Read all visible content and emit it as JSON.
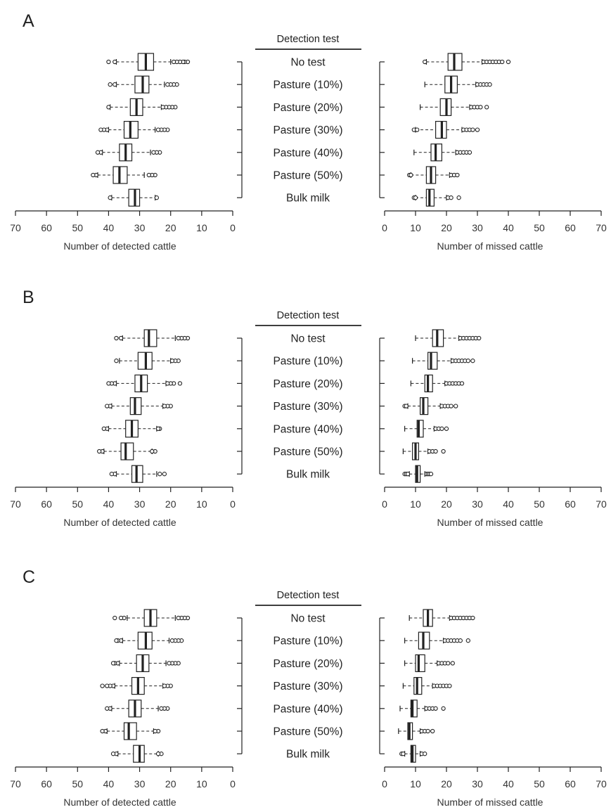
{
  "figure": {
    "header_label": "Detection test",
    "categories": [
      "No test",
      "Pasture (10%)",
      "Pasture (20%)",
      "Pasture (30%)",
      "Pasture (40%)",
      "Pasture (50%)",
      "Bulk milk"
    ],
    "left_axis": {
      "title": "Number of detected cattle",
      "ticks": [
        "70",
        "60",
        "50",
        "40",
        "30",
        "20",
        "10",
        "0"
      ],
      "range": [
        70,
        0
      ]
    },
    "right_axis": {
      "title": "Number of missed cattle",
      "ticks": [
        "0",
        "10",
        "20",
        "30",
        "40",
        "50",
        "60",
        "70"
      ],
      "range": [
        0,
        70
      ]
    }
  },
  "colors": {
    "ink": "#222222",
    "box_fill": "#ffffff"
  },
  "chart_data": [
    {
      "panel": "A",
      "type": "boxplot",
      "detected": [
        {
          "category": "No test",
          "whisker_low": 20,
          "q1": 25.5,
          "median": 28,
          "q3": 30.5,
          "whisker_high": 37.5,
          "outliers": [
            14.5,
            15.5,
            16,
            17,
            18,
            19,
            38,
            40
          ]
        },
        {
          "category": "Pasture (10%)",
          "whisker_low": 22,
          "q1": 27,
          "median": 29,
          "q3": 31.5,
          "whisker_high": 37.5,
          "outliers": [
            18,
            19,
            20,
            21,
            38,
            39.5
          ]
        },
        {
          "category": "Pasture (20%)",
          "whisker_low": 23,
          "q1": 29,
          "median": 31,
          "q3": 33,
          "whisker_high": 39.5,
          "outliers": [
            18.5,
            19.5,
            20.5,
            21.5,
            22.5,
            40
          ]
        },
        {
          "category": "Pasture (30%)",
          "whisker_low": 25,
          "q1": 30.5,
          "median": 33,
          "q3": 35,
          "whisker_high": 40,
          "outliers": [
            21,
            22,
            23,
            24,
            40.5,
            41.5,
            42.5
          ]
        },
        {
          "category": "Pasture (40%)",
          "whisker_low": 26.5,
          "q1": 32.5,
          "median": 34.5,
          "q3": 36.5,
          "whisker_high": 42,
          "outliers": [
            23.5,
            24.5,
            25.5,
            42.5,
            43.5
          ]
        },
        {
          "category": "Pasture (50%)",
          "whisker_low": 28.5,
          "q1": 34,
          "median": 36.5,
          "q3": 38.5,
          "whisker_high": 43.5,
          "outliers": [
            25,
            26,
            27,
            44,
            45
          ]
        },
        {
          "category": "Bulk milk",
          "whisker_low": 25,
          "q1": 30,
          "median": 31.5,
          "q3": 33.5,
          "whisker_high": 39,
          "outliers": [
            24.5,
            39.5
          ]
        }
      ],
      "missed": [
        {
          "category": "No test",
          "whisker_low": 13.5,
          "q1": 20.5,
          "median": 22.5,
          "q3": 25,
          "whisker_high": 31.5,
          "outliers": [
            13,
            32,
            33,
            34,
            35,
            36,
            37,
            38,
            40
          ]
        },
        {
          "category": "Pasture (10%)",
          "whisker_low": 13,
          "q1": 19.5,
          "median": 21.5,
          "q3": 23.5,
          "whisker_high": 29.5,
          "outliers": [
            30,
            31,
            32,
            33,
            34
          ]
        },
        {
          "category": "Pasture (20%)",
          "whisker_low": 11.5,
          "q1": 18,
          "median": 20,
          "q3": 21.5,
          "whisker_high": 27.5,
          "outliers": [
            28,
            29,
            30,
            31,
            33
          ]
        },
        {
          "category": "Pasture (30%)",
          "whisker_low": 10,
          "q1": 16.5,
          "median": 18.5,
          "q3": 20,
          "whisker_high": 25,
          "outliers": [
            9.5,
            10.5,
            25.5,
            26.5,
            27.5,
            28.5,
            30
          ]
        },
        {
          "category": "Pasture (40%)",
          "whisker_low": 9.5,
          "q1": 15,
          "median": 16.5,
          "q3": 18.5,
          "whisker_high": 23,
          "outliers": [
            23.5,
            24.5,
            25.5,
            26.5,
            27.5
          ]
        },
        {
          "category": "Pasture (50%)",
          "whisker_low": 8.5,
          "q1": 13.5,
          "median": 15,
          "q3": 16.5,
          "whisker_high": 21,
          "outliers": [
            8,
            8.5,
            21.5,
            22.5,
            23.5
          ]
        },
        {
          "category": "Bulk milk",
          "whisker_low": 10,
          "q1": 13.5,
          "median": 14.5,
          "q3": 16,
          "whisker_high": 20,
          "outliers": [
            9.5,
            10,
            20.5,
            21.5,
            24
          ]
        }
      ]
    },
    {
      "panel": "B",
      "type": "boxplot",
      "detected": [
        {
          "category": "No test",
          "whisker_low": 18.5,
          "q1": 24.5,
          "median": 27,
          "q3": 28.5,
          "whisker_high": 35.5,
          "outliers": [
            14.5,
            15.5,
            16.5,
            17.5,
            36,
            37.5
          ]
        },
        {
          "category": "Pasture (10%)",
          "whisker_low": 20,
          "q1": 26,
          "median": 28,
          "q3": 30.5,
          "whisker_high": 36.5,
          "outliers": [
            17.5,
            18.5,
            19.5,
            37.5
          ]
        },
        {
          "category": "Pasture (20%)",
          "whisker_low": 21.5,
          "q1": 27.5,
          "median": 29.5,
          "q3": 31.5,
          "whisker_high": 37.5,
          "outliers": [
            17,
            19,
            20,
            21,
            38,
            39,
            40
          ]
        },
        {
          "category": "Pasture (30%)",
          "whisker_low": 22.5,
          "q1": 29.5,
          "median": 31.5,
          "q3": 33,
          "whisker_high": 39,
          "outliers": [
            20,
            21,
            22,
            39.5,
            40.5
          ]
        },
        {
          "category": "Pasture (40%)",
          "whisker_low": 24.5,
          "q1": 30.5,
          "median": 32.5,
          "q3": 34.5,
          "whisker_high": 40,
          "outliers": [
            23.5,
            24,
            40.5,
            41.5
          ]
        },
        {
          "category": "Pasture (50%)",
          "whisker_low": 26,
          "q1": 32,
          "median": 34.5,
          "q3": 36,
          "whisker_high": 41.5,
          "outliers": [
            25,
            26,
            42,
            43
          ]
        },
        {
          "category": "Bulk milk",
          "whisker_low": 24.5,
          "q1": 29,
          "median": 31,
          "q3": 32.5,
          "whisker_high": 37.5,
          "outliers": [
            22,
            23.5,
            38,
            39
          ]
        }
      ],
      "missed": [
        {
          "category": "No test",
          "whisker_low": 10,
          "q1": 15.5,
          "median": 17,
          "q3": 19,
          "whisker_high": 24,
          "outliers": [
            24.5,
            25.5,
            26.5,
            27.5,
            28.5,
            29.5,
            30.5
          ]
        },
        {
          "category": "Pasture (10%)",
          "whisker_low": 9,
          "q1": 14,
          "median": 15,
          "q3": 17,
          "whisker_high": 21.5,
          "outliers": [
            22,
            23,
            24,
            25,
            26,
            27,
            28.5
          ]
        },
        {
          "category": "Pasture (20%)",
          "whisker_low": 8.5,
          "q1": 13,
          "median": 14,
          "q3": 15.5,
          "whisker_high": 19.5,
          "outliers": [
            20,
            21,
            22,
            23,
            24,
            25
          ]
        },
        {
          "category": "Pasture (30%)",
          "whisker_low": 7.5,
          "q1": 11.5,
          "median": 12.5,
          "q3": 14,
          "whisker_high": 18,
          "outliers": [
            6.5,
            7,
            18.5,
            19.5,
            20.5,
            21.5,
            23
          ]
        },
        {
          "category": "Pasture (40%)",
          "whisker_low": 6.5,
          "q1": 10.5,
          "median": 11,
          "q3": 12.5,
          "whisker_high": 16,
          "outliers": [
            16.5,
            17.5,
            18.5,
            20
          ]
        },
        {
          "category": "Pasture (50%)",
          "whisker_low": 6,
          "q1": 9,
          "median": 10,
          "q3": 11,
          "whisker_high": 14,
          "outliers": [
            14.5,
            15.5,
            16.5,
            19
          ]
        },
        {
          "category": "Bulk milk",
          "whisker_low": 8,
          "q1": 10,
          "median": 10.5,
          "q3": 11.5,
          "whisker_high": 13,
          "outliers": [
            6.5,
            7,
            7.5,
            13.5,
            14,
            14.5,
            15
          ]
        }
      ]
    },
    {
      "panel": "C",
      "type": "boxplot",
      "detected": [
        {
          "category": "No test",
          "whisker_low": 18.5,
          "q1": 24.5,
          "median": 26.5,
          "q3": 28.5,
          "whisker_high": 34,
          "outliers": [
            14.5,
            15.5,
            16.5,
            17.5,
            35,
            36,
            38
          ]
        },
        {
          "category": "Pasture (10%)",
          "whisker_low": 20.5,
          "q1": 26,
          "median": 28,
          "q3": 30.5,
          "whisker_high": 35.5,
          "outliers": [
            16.5,
            17.5,
            18.5,
            19.5,
            36,
            37,
            37.5
          ]
        },
        {
          "category": "Pasture (20%)",
          "whisker_low": 21.5,
          "q1": 27,
          "median": 29,
          "q3": 31,
          "whisker_high": 36.5,
          "outliers": [
            17.5,
            18.5,
            19.5,
            20.5,
            37,
            38,
            38.5
          ]
        },
        {
          "category": "Pasture (30%)",
          "whisker_low": 22.5,
          "q1": 28.5,
          "median": 30.5,
          "q3": 32.5,
          "whisker_high": 38,
          "outliers": [
            20,
            21,
            22,
            38.5,
            39.5,
            40.5,
            42
          ]
        },
        {
          "category": "Pasture (40%)",
          "whisker_low": 24,
          "q1": 29.5,
          "median": 31.5,
          "q3": 33.5,
          "whisker_high": 39,
          "outliers": [
            21,
            22,
            23,
            39.5,
            40.5
          ]
        },
        {
          "category": "Pasture (50%)",
          "whisker_low": 25.5,
          "q1": 31,
          "median": 33.5,
          "q3": 35,
          "whisker_high": 40.5,
          "outliers": [
            24,
            25,
            41,
            42
          ]
        },
        {
          "category": "Bulk milk",
          "whisker_low": 24,
          "q1": 28.5,
          "median": 30,
          "q3": 32,
          "whisker_high": 37,
          "outliers": [
            23,
            24,
            37.5,
            38.5
          ]
        }
      ],
      "missed": [
        {
          "category": "No test",
          "whisker_low": 8,
          "q1": 12.5,
          "median": 14,
          "q3": 15.5,
          "whisker_high": 21,
          "outliers": [
            21.5,
            22.5,
            23.5,
            24.5,
            25.5,
            26.5,
            27.5,
            28.5
          ]
        },
        {
          "category": "Pasture (10%)",
          "whisker_low": 6.5,
          "q1": 11,
          "median": 12.5,
          "q3": 14.5,
          "whisker_high": 19,
          "outliers": [
            19.5,
            20.5,
            21.5,
            22.5,
            23.5,
            24.5,
            27
          ]
        },
        {
          "category": "Pasture (20%)",
          "whisker_low": 6.5,
          "q1": 10,
          "median": 11,
          "q3": 13,
          "whisker_high": 17,
          "outliers": [
            17.5,
            18.5,
            19.5,
            20.5,
            22
          ]
        },
        {
          "category": "Pasture (30%)",
          "whisker_low": 6,
          "q1": 9.5,
          "median": 10.5,
          "q3": 12,
          "whisker_high": 15.5,
          "outliers": [
            16,
            17,
            18,
            19,
            20,
            21
          ]
        },
        {
          "category": "Pasture (40%)",
          "whisker_low": 5,
          "q1": 8.5,
          "median": 9,
          "q3": 10.5,
          "whisker_high": 13,
          "outliers": [
            13.5,
            14.5,
            15.5,
            16.5,
            19
          ]
        },
        {
          "category": "Pasture (50%)",
          "whisker_low": 4.5,
          "q1": 7.5,
          "median": 8,
          "q3": 9,
          "whisker_high": 11.5,
          "outliers": [
            12,
            13,
            14,
            15.5
          ]
        },
        {
          "category": "Bulk milk",
          "whisker_low": 6.5,
          "q1": 8.5,
          "median": 9,
          "q3": 10,
          "whisker_high": 11.5,
          "outliers": [
            5.5,
            6,
            12,
            13
          ]
        }
      ]
    }
  ]
}
